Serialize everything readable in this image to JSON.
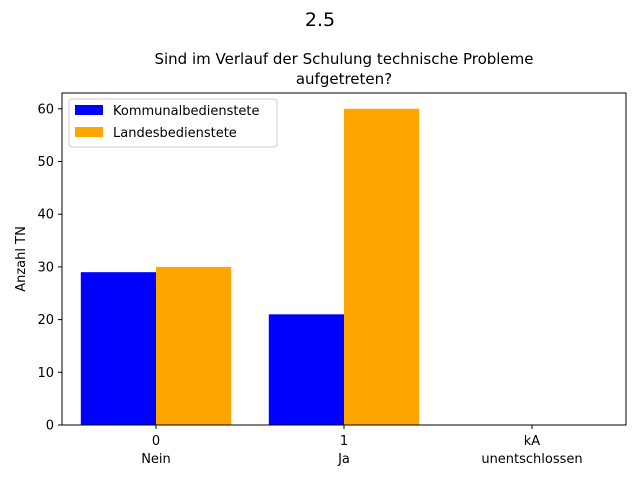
{
  "chart_data": {
    "type": "bar",
    "suptitle": "2.5",
    "title_lines": [
      "Sind im Verlauf der Schulung technische Probleme",
      "aufgetreten?"
    ],
    "xlabel": "",
    "ylabel": "Anzahl TN",
    "ylim": [
      0,
      63
    ],
    "yticks": [
      0,
      10,
      20,
      30,
      40,
      50,
      60
    ],
    "categories": [
      {
        "code": "0",
        "label": "Nein"
      },
      {
        "code": "1",
        "label": "Ja"
      },
      {
        "code": "kA",
        "label": "unentschlossen"
      }
    ],
    "series": [
      {
        "name": "Kommunalbedienstete",
        "color": "#0000ff",
        "values": [
          29,
          21,
          0
        ]
      },
      {
        "name": "Landesbedienstete",
        "color": "#ffa500",
        "values": [
          30,
          60,
          0
        ]
      }
    ],
    "legend_position": "upper-left",
    "grid": false
  }
}
